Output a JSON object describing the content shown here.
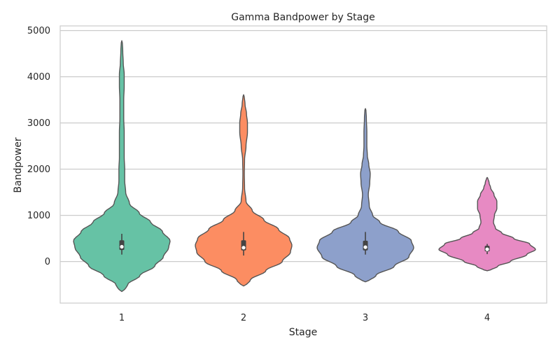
{
  "chart_data": {
    "type": "violin",
    "title": "Gamma Bandpower by Stage",
    "xlabel": "Stage",
    "ylabel": "Bandpower",
    "categories": [
      "1",
      "2",
      "3",
      "4"
    ],
    "ylim": [
      -900,
      5100
    ],
    "yticks": [
      0,
      1000,
      2000,
      3000,
      4000,
      5000
    ],
    "grid": "horizontal",
    "colors": [
      "#66c2a5",
      "#fc8d62",
      "#8da0cb",
      "#e78ac3"
    ],
    "series": [
      {
        "category": "1",
        "color": "#66c2a5",
        "range": [
          -650,
          4780
        ],
        "box": {
          "q1": 250,
          "median": 320,
          "q3": 460,
          "whisker_low": 150,
          "whisker_high": 600
        },
        "density": [
          [
            -650,
            0.04
          ],
          [
            -500,
            0.12
          ],
          [
            -300,
            0.38
          ],
          [
            -100,
            0.68
          ],
          [
            100,
            0.86
          ],
          [
            300,
            0.97
          ],
          [
            450,
            1.0
          ],
          [
            650,
            0.84
          ],
          [
            850,
            0.6
          ],
          [
            1050,
            0.36
          ],
          [
            1250,
            0.16
          ],
          [
            1500,
            0.08
          ],
          [
            1750,
            0.06
          ],
          [
            2000,
            0.06
          ],
          [
            2250,
            0.05
          ],
          [
            2500,
            0.05
          ],
          [
            2800,
            0.05
          ],
          [
            3100,
            0.04
          ],
          [
            3500,
            0.04
          ],
          [
            3800,
            0.05
          ],
          [
            4050,
            0.05
          ],
          [
            4300,
            0.03
          ],
          [
            4550,
            0.02
          ],
          [
            4780,
            0.01
          ]
        ]
      },
      {
        "category": "2",
        "color": "#fc8d62",
        "range": [
          -530,
          3610
        ],
        "box": {
          "q1": 240,
          "median": 300,
          "q3": 460,
          "whisker_low": 130,
          "whisker_high": 640
        },
        "density": [
          [
            -530,
            0.04
          ],
          [
            -400,
            0.14
          ],
          [
            -200,
            0.46
          ],
          [
            0,
            0.8
          ],
          [
            200,
            0.97
          ],
          [
            350,
            1.0
          ],
          [
            500,
            0.95
          ],
          [
            700,
            0.72
          ],
          [
            900,
            0.42
          ],
          [
            1100,
            0.18
          ],
          [
            1300,
            0.05
          ],
          [
            1600,
            0.02
          ],
          [
            1900,
            0.015
          ],
          [
            2200,
            0.02
          ],
          [
            2500,
            0.05
          ],
          [
            2800,
            0.08
          ],
          [
            3000,
            0.08
          ],
          [
            3200,
            0.06
          ],
          [
            3400,
            0.03
          ],
          [
            3610,
            0.01
          ]
        ]
      },
      {
        "category": "3",
        "color": "#8da0cb",
        "range": [
          -440,
          3310
        ],
        "box": {
          "q1": 240,
          "median": 310,
          "q3": 450,
          "whisker_low": 150,
          "whisker_high": 640
        },
        "density": [
          [
            -440,
            0.05
          ],
          [
            -300,
            0.22
          ],
          [
            -100,
            0.6
          ],
          [
            100,
            0.9
          ],
          [
            300,
            1.0
          ],
          [
            450,
            0.95
          ],
          [
            650,
            0.68
          ],
          [
            850,
            0.3
          ],
          [
            1000,
            0.15
          ],
          [
            1200,
            0.08
          ],
          [
            1450,
            0.06
          ],
          [
            1700,
            0.09
          ],
          [
            1900,
            0.1
          ],
          [
            2100,
            0.07
          ],
          [
            2300,
            0.04
          ],
          [
            2500,
            0.03
          ],
          [
            2800,
            0.03
          ],
          [
            3100,
            0.02
          ],
          [
            3310,
            0.01
          ]
        ]
      },
      {
        "category": "4",
        "color": "#e78ac3",
        "range": [
          -200,
          1820
        ],
        "box": {
          "q1": 220,
          "median": 265,
          "q3": 340,
          "whisker_low": 160,
          "whisker_high": 380
        },
        "density": [
          [
            -200,
            0.05
          ],
          [
            -100,
            0.22
          ],
          [
            0,
            0.48
          ],
          [
            150,
            0.82
          ],
          [
            260,
            1.0
          ],
          [
            380,
            0.88
          ],
          [
            500,
            0.55
          ],
          [
            620,
            0.3
          ],
          [
            720,
            0.17
          ],
          [
            850,
            0.13
          ],
          [
            1000,
            0.15
          ],
          [
            1150,
            0.2
          ],
          [
            1300,
            0.2
          ],
          [
            1450,
            0.14
          ],
          [
            1600,
            0.07
          ],
          [
            1700,
            0.04
          ],
          [
            1820,
            0.01
          ]
        ]
      }
    ]
  }
}
